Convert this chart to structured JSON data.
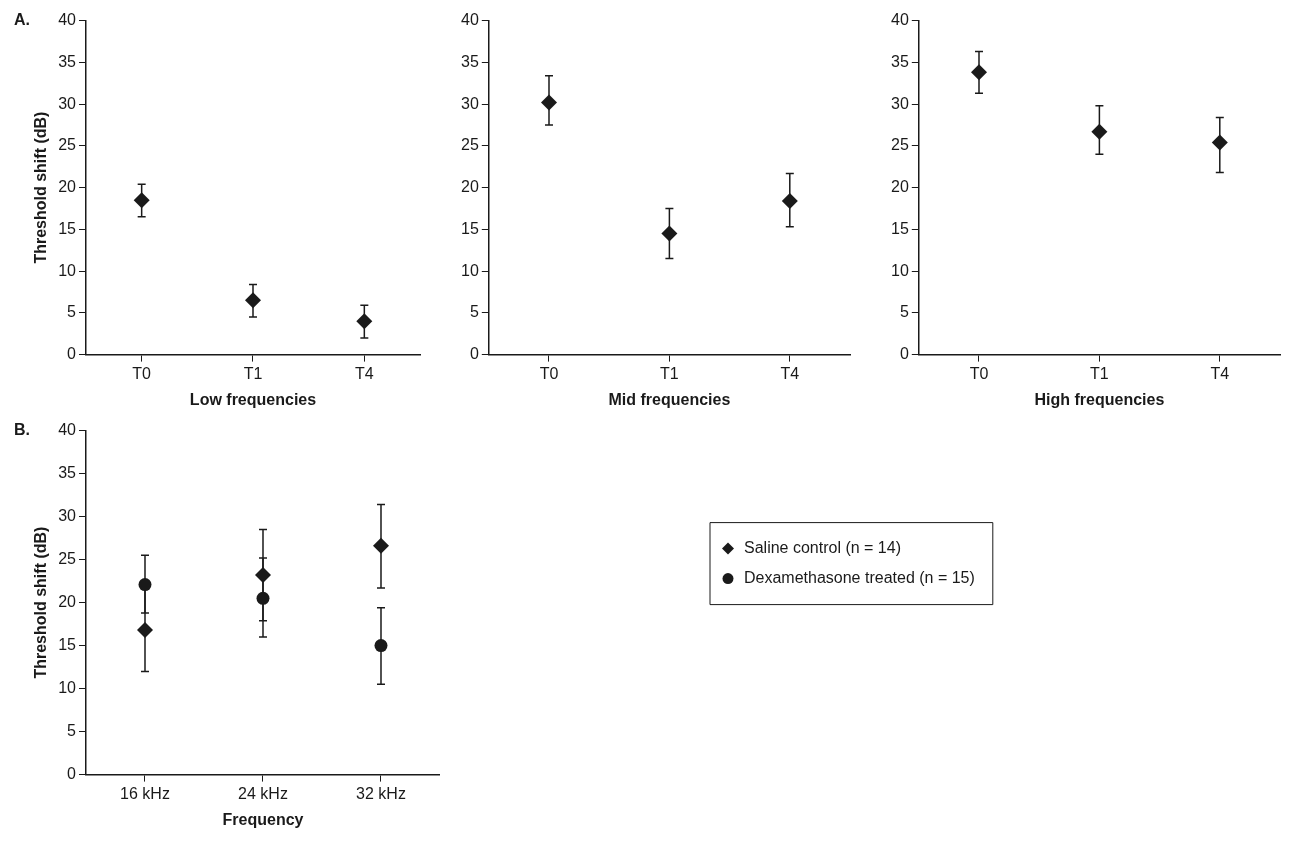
{
  "chart_data": [
    {
      "type": "scatter",
      "annotations": [
        "A."
      ],
      "xlabel": "Low frequencies",
      "ylabel": "Threshold shift (dB)",
      "categories": [
        "T0",
        "T1",
        "T4"
      ],
      "ylim": [
        0,
        40
      ],
      "yticks": [
        0,
        5,
        10,
        15,
        20,
        25,
        30,
        35,
        40
      ],
      "grid": false,
      "marker": "diamond",
      "series": [
        {
          "color": "#1a1a1a",
          "values": [
            18.5,
            6.5,
            4
          ],
          "errors": [
            [
              16.5,
              20.4
            ],
            [
              4.5,
              8.4
            ],
            [
              2,
              5.9
            ]
          ]
        }
      ]
    },
    {
      "type": "scatter",
      "xlabel": "Mid frequencies",
      "categories": [
        "T0",
        "T1",
        "T4"
      ],
      "ylim": [
        0,
        40
      ],
      "yticks": [
        0,
        5,
        10,
        15,
        20,
        25,
        30,
        35,
        40
      ],
      "grid": false,
      "marker": "diamond",
      "series": [
        {
          "color": "#1a1a1a",
          "values": [
            30.2,
            14.5,
            18.4
          ],
          "errors": [
            [
              27.5,
              33.4
            ],
            [
              11.5,
              17.5
            ],
            [
              15.3,
              21.7
            ]
          ]
        }
      ]
    },
    {
      "type": "scatter",
      "xlabel": "High frequencies",
      "categories": [
        "T0",
        "T1",
        "T4"
      ],
      "ylim": [
        0,
        40
      ],
      "yticks": [
        0,
        5,
        10,
        15,
        20,
        25,
        30,
        35,
        40
      ],
      "grid": false,
      "marker": "diamond",
      "series": [
        {
          "color": "#1a1a1a",
          "values": [
            33.8,
            26.7,
            25.4
          ],
          "errors": [
            [
              31.3,
              36.3
            ],
            [
              24,
              29.8
            ],
            [
              21.8,
              28.4
            ]
          ]
        }
      ]
    },
    {
      "type": "scatter",
      "annotations": [
        "B."
      ],
      "xlabel": "Frequency",
      "ylabel": "Threshold shift (dB)",
      "categories": [
        "16 kHz",
        "24 kHz",
        "32 kHz"
      ],
      "ylim": [
        0,
        40
      ],
      "yticks": [
        0,
        5,
        10,
        15,
        20,
        25,
        30,
        35,
        40
      ],
      "grid": false,
      "legend": "right",
      "series": [
        {
          "name": "Saline control (n = 14)",
          "color": "#1a1a1a",
          "marker": "diamond",
          "values": [
            16.8,
            23.2,
            26.6
          ],
          "errors": [
            [
              12,
              21.6
            ],
            [
              17.9,
              28.5
            ],
            [
              21.7,
              31.4
            ]
          ]
        },
        {
          "name": "Dexamethasone treated (n = 15)",
          "color": "#1a1a1a",
          "marker": "circle",
          "values": [
            22.1,
            20.5,
            15
          ],
          "errors": [
            [
              18.8,
              25.5
            ],
            [
              16,
              25.2
            ],
            [
              10.5,
              19.4
            ]
          ]
        }
      ]
    }
  ]
}
